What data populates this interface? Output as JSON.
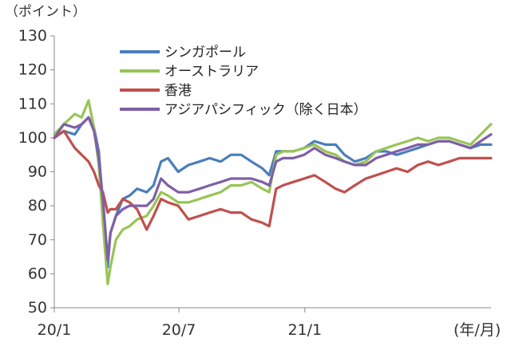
{
  "chart_data": {
    "type": "line",
    "title": "",
    "y_unit_label": "（ポイント）",
    "x_unit_label": "(年/月)",
    "ylabel": "",
    "xlabel": "",
    "ylim": [
      50,
      130
    ],
    "yticks": [
      50,
      60,
      70,
      80,
      90,
      100,
      110,
      120,
      130
    ],
    "xlim": [
      "2020-01-01",
      "2021-09-30"
    ],
    "xticks": [
      {
        "date": "2020-01-01",
        "label": "20/1"
      },
      {
        "date": "2020-07-01",
        "label": "20/7"
      },
      {
        "date": "2021-01-01",
        "label": "21/1"
      }
    ],
    "grid": false,
    "legend_position": "top-center",
    "x": [
      "2020-01-01",
      "2020-01-15",
      "2020-01-31",
      "2020-02-10",
      "2020-02-20",
      "2020-02-28",
      "2020-03-06",
      "2020-03-12",
      "2020-03-19",
      "2020-03-23",
      "2020-03-31",
      "2020-04-10",
      "2020-04-20",
      "2020-05-01",
      "2020-05-15",
      "2020-05-25",
      "2020-06-05",
      "2020-06-15",
      "2020-06-30",
      "2020-07-15",
      "2020-07-31",
      "2020-08-15",
      "2020-08-31",
      "2020-09-15",
      "2020-09-30",
      "2020-10-15",
      "2020-10-31",
      "2020-11-10",
      "2020-11-20",
      "2020-11-30",
      "2020-12-15",
      "2020-12-31",
      "2021-01-15",
      "2021-01-31",
      "2021-02-15",
      "2021-02-28",
      "2021-03-15",
      "2021-03-31",
      "2021-04-15",
      "2021-04-30",
      "2021-05-15",
      "2021-05-31",
      "2021-06-15",
      "2021-06-30",
      "2021-07-15",
      "2021-07-31",
      "2021-08-15",
      "2021-08-31",
      "2021-09-15",
      "2021-09-30"
    ],
    "series": [
      {
        "name": "シンガポール",
        "color": "#4a7ebb",
        "values": [
          100,
          102,
          101,
          104,
          106,
          103,
          96,
          80,
          62,
          72,
          77,
          82,
          83,
          85,
          84,
          86,
          93,
          94,
          90,
          92,
          93,
          94,
          93,
          95,
          95,
          93,
          91,
          89,
          96,
          96,
          96,
          97,
          99,
          98,
          98,
          95,
          93,
          94,
          96,
          96,
          95,
          96,
          97,
          98,
          99,
          99,
          98,
          97,
          98,
          98
        ]
      },
      {
        "name": "オーストラリア",
        "color": "#98c455",
        "values": [
          101,
          104,
          107,
          106,
          111,
          103,
          92,
          75,
          57,
          62,
          70,
          73,
          74,
          76,
          77,
          80,
          84,
          83,
          81,
          81,
          82,
          83,
          84,
          86,
          86,
          87,
          85,
          84,
          95,
          96,
          96,
          97,
          98,
          96,
          95,
          93,
          92,
          93,
          96,
          97,
          98,
          99,
          100,
          99,
          100,
          100,
          99,
          98,
          101,
          104
        ]
      },
      {
        "name": "香港",
        "color": "#c0504d",
        "values": [
          100,
          102,
          97,
          95,
          93,
          90,
          86,
          84,
          78,
          79,
          79,
          82,
          81,
          79,
          73,
          77,
          82,
          81,
          80,
          76,
          77,
          78,
          79,
          78,
          78,
          76,
          75,
          74,
          85,
          86,
          87,
          88,
          89,
          87,
          85,
          84,
          86,
          88,
          89,
          90,
          91,
          90,
          92,
          93,
          92,
          93,
          94,
          94,
          94,
          94
        ]
      },
      {
        "name": "アジアパシフィック（除く日本）",
        "color": "#7f5fa6",
        "values": [
          100,
          104,
          103,
          104,
          106,
          102,
          94,
          82,
          64,
          72,
          77,
          79,
          80,
          80,
          80,
          82,
          88,
          86,
          84,
          84,
          85,
          86,
          87,
          88,
          88,
          88,
          87,
          86,
          93,
          94,
          94,
          95,
          97,
          95,
          94,
          93,
          92,
          92,
          94,
          95,
          96,
          97,
          98,
          98,
          99,
          99,
          98,
          97,
          99,
          101
        ]
      }
    ]
  }
}
